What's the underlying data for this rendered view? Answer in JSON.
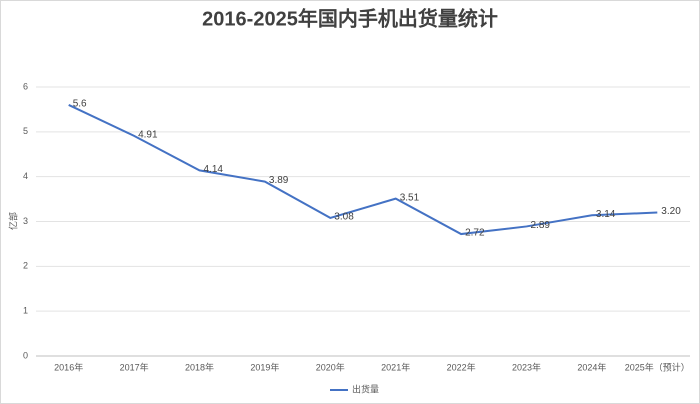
{
  "chart_data": {
    "type": "line",
    "title": "2016-2025年国内手机出货量统计",
    "y_label": "亿部",
    "categories": [
      "2016年",
      "2017年",
      "2018年",
      "2019年",
      "2020年",
      "2021年",
      "2022年",
      "2023年",
      "2024年",
      "2025年（预计）"
    ],
    "series": [
      {
        "name": "出货量",
        "color": "#4472c4",
        "values": [
          5.6,
          4.91,
          4.14,
          3.89,
          3.08,
          3.51,
          2.72,
          2.89,
          3.14,
          3.2
        ],
        "value_labels": [
          "5.6",
          "4.91",
          "4.14",
          "3.89",
          "3.08",
          "3.51",
          "2.72",
          "2.89",
          "3.14",
          "3.20"
        ]
      }
    ],
    "ylim": [
      0,
      6
    ],
    "yticks": [
      0,
      1,
      2,
      3,
      4,
      5,
      6
    ],
    "grid": true,
    "legend": "bottom"
  }
}
